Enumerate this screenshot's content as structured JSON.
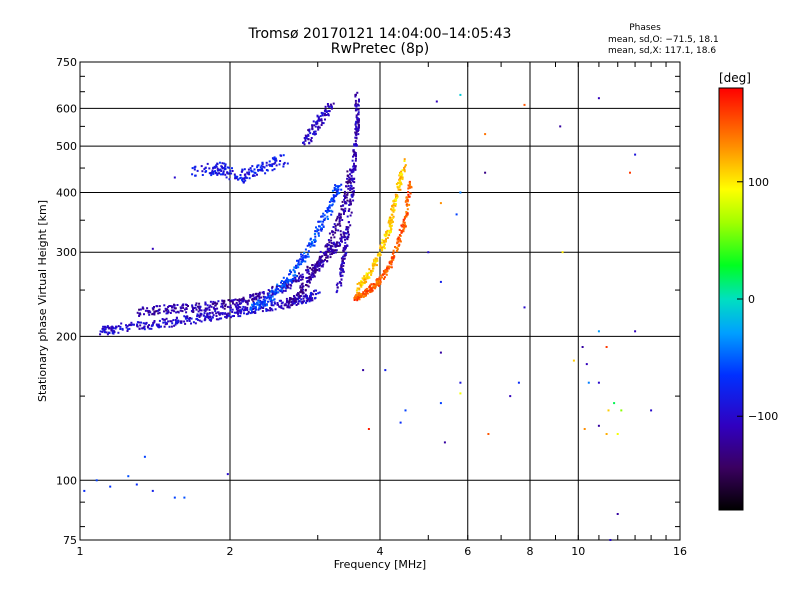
{
  "chart_data": {
    "type": "scatter",
    "title": "Tromsø 20170121 14:04:00–14:05:43",
    "subtitle": "RwPretec (8p)",
    "xlabel": "Frequency [MHz]",
    "ylabel": "Stationary phase Virtual Height [km]",
    "x_scale": "log",
    "y_scale": "log",
    "xlim": [
      1,
      16
    ],
    "ylim": [
      75,
      750
    ],
    "x_ticks": [
      1,
      2,
      4,
      6,
      8,
      10,
      16
    ],
    "x_tick_labels": [
      "1",
      "2",
      "4",
      "6",
      "8",
      "10",
      "16"
    ],
    "y_ticks": [
      75,
      100,
      200,
      300,
      400,
      500,
      600,
      750
    ],
    "y_tick_labels": [
      "75",
      "100",
      "200",
      "300",
      "400",
      "500",
      "600",
      "750"
    ],
    "grid": true,
    "phases_box": {
      "title": "Phases",
      "line_o": "mean, sd,O: −71.5, 18.1",
      "line_x": "mean, sd,X: 117.1, 18.6"
    },
    "colorbar": {
      "label": "[deg]",
      "range": [
        -180,
        180
      ],
      "ticks": [
        100,
        0,
        -100
      ],
      "tick_labels": [
        "100",
        "0",
        "−100"
      ]
    },
    "traces": [
      {
        "x": [
          1.1,
          1.2,
          1.4,
          1.6,
          1.8,
          2.0,
          2.2,
          2.5,
          2.8,
          3.0
        ],
        "y": [
          205,
          208,
          212,
          215,
          220,
          223,
          228,
          232,
          238,
          245
        ],
        "phase": -100,
        "spread": 0.03
      },
      {
        "x": [
          1.3,
          1.5,
          1.7,
          1.9,
          2.1,
          2.3,
          2.6,
          2.9,
          3.2,
          3.4
        ],
        "y": [
          225,
          228,
          230,
          232,
          236,
          242,
          255,
          275,
          300,
          330
        ],
        "phase": -115,
        "spread": 0.03
      },
      {
        "x": [
          2.2,
          2.4,
          2.6,
          2.8,
          3.0,
          3.2,
          3.3
        ],
        "y": [
          228,
          240,
          260,
          290,
          330,
          380,
          410
        ],
        "phase": -60,
        "spread": 0.03
      },
      {
        "x": [
          2.6,
          2.8,
          3.0,
          3.2,
          3.4,
          3.5
        ],
        "y": [
          232,
          250,
          280,
          320,
          380,
          450
        ],
        "phase": -120,
        "spread": 0.025
      },
      {
        "x": [
          3.3,
          3.4,
          3.5,
          3.55,
          3.6,
          3.6
        ],
        "y": [
          250,
          300,
          380,
          460,
          550,
          640
        ],
        "phase": -110,
        "spread": 0.018
      },
      {
        "x": [
          3.55,
          3.7,
          3.9,
          4.1,
          4.3,
          4.5,
          4.6
        ],
        "y": [
          240,
          245,
          255,
          270,
          300,
          350,
          420
        ],
        "phase": 150,
        "spread": 0.02
      },
      {
        "x": [
          3.6,
          3.8,
          4.0,
          4.2,
          4.3,
          4.5
        ],
        "y": [
          250,
          270,
          300,
          340,
          390,
          470
        ],
        "phase": 110,
        "spread": 0.02
      },
      {
        "x": [
          1.7,
          1.9,
          2.1,
          2.3,
          2.6
        ],
        "y": [
          440,
          450,
          430,
          450,
          470
        ],
        "phase": -85,
        "spread": 0.04
      },
      {
        "x": [
          2.8,
          3.0,
          3.2
        ],
        "y": [
          500,
          560,
          610
        ],
        "phase": -105,
        "spread": 0.03
      }
    ],
    "isolated_points": [
      {
        "x": 1.02,
        "y": 95,
        "phase": -70
      },
      {
        "x": 1.08,
        "y": 100,
        "phase": -60
      },
      {
        "x": 1.15,
        "y": 97,
        "phase": -65
      },
      {
        "x": 1.25,
        "y": 102,
        "phase": -55
      },
      {
        "x": 1.3,
        "y": 98,
        "phase": -70
      },
      {
        "x": 1.35,
        "y": 112,
        "phase": -60
      },
      {
        "x": 1.4,
        "y": 95,
        "phase": -80
      },
      {
        "x": 1.55,
        "y": 92,
        "phase": -60
      },
      {
        "x": 1.62,
        "y": 92,
        "phase": -55
      },
      {
        "x": 1.98,
        "y": 103,
        "phase": -100
      },
      {
        "x": 1.4,
        "y": 305,
        "phase": -110
      },
      {
        "x": 1.55,
        "y": 430,
        "phase": -100
      },
      {
        "x": 5.2,
        "y": 620,
        "phase": -110
      },
      {
        "x": 5.8,
        "y": 640,
        "phase": -10
      },
      {
        "x": 6.5,
        "y": 530,
        "phase": 140
      },
      {
        "x": 7.8,
        "y": 610,
        "phase": 150
      },
      {
        "x": 9.2,
        "y": 550,
        "phase": -120
      },
      {
        "x": 11,
        "y": 630,
        "phase": -110
      },
      {
        "x": 13,
        "y": 480,
        "phase": -90
      },
      {
        "x": 12.7,
        "y": 440,
        "phase": 160
      },
      {
        "x": 6.5,
        "y": 440,
        "phase": -130
      },
      {
        "x": 5.8,
        "y": 400,
        "phase": -40
      },
      {
        "x": 5.3,
        "y": 380,
        "phase": 130
      },
      {
        "x": 5.7,
        "y": 360,
        "phase": -60
      },
      {
        "x": 5.0,
        "y": 300,
        "phase": -100
      },
      {
        "x": 5.3,
        "y": 260,
        "phase": -80
      },
      {
        "x": 5.3,
        "y": 185,
        "phase": -120
      },
      {
        "x": 5.3,
        "y": 145,
        "phase": -60
      },
      {
        "x": 5.8,
        "y": 160,
        "phase": -90
      },
      {
        "x": 5.8,
        "y": 152,
        "phase": 90
      },
      {
        "x": 6.6,
        "y": 125,
        "phase": 150
      },
      {
        "x": 7.3,
        "y": 150,
        "phase": -110
      },
      {
        "x": 7.6,
        "y": 160,
        "phase": -70
      },
      {
        "x": 7.8,
        "y": 230,
        "phase": -100
      },
      {
        "x": 3.7,
        "y": 170,
        "phase": -120
      },
      {
        "x": 4.1,
        "y": 170,
        "phase": -80
      },
      {
        "x": 3.8,
        "y": 128,
        "phase": 170
      },
      {
        "x": 4.5,
        "y": 140,
        "phase": -60
      },
      {
        "x": 4.4,
        "y": 132,
        "phase": -70
      },
      {
        "x": 5.4,
        "y": 120,
        "phase": -120
      },
      {
        "x": 9.3,
        "y": 300,
        "phase": 100
      },
      {
        "x": 9.8,
        "y": 178,
        "phase": 110
      },
      {
        "x": 10.2,
        "y": 190,
        "phase": -120
      },
      {
        "x": 10.4,
        "y": 175,
        "phase": -110
      },
      {
        "x": 11.0,
        "y": 205,
        "phase": -30
      },
      {
        "x": 11.4,
        "y": 190,
        "phase": 160
      },
      {
        "x": 10.5,
        "y": 160,
        "phase": -40
      },
      {
        "x": 11.0,
        "y": 160,
        "phase": -100
      },
      {
        "x": 11.5,
        "y": 140,
        "phase": 110
      },
      {
        "x": 11.8,
        "y": 145,
        "phase": 20
      },
      {
        "x": 12.2,
        "y": 140,
        "phase": 60
      },
      {
        "x": 11.0,
        "y": 130,
        "phase": -120
      },
      {
        "x": 11.4,
        "y": 125,
        "phase": 120
      },
      {
        "x": 12.0,
        "y": 125,
        "phase": 90
      },
      {
        "x": 13.0,
        "y": 205,
        "phase": -110
      },
      {
        "x": 14.0,
        "y": 140,
        "phase": -100
      },
      {
        "x": 10.3,
        "y": 128,
        "phase": 130
      },
      {
        "x": 12.0,
        "y": 85,
        "phase": -120
      },
      {
        "x": 11.6,
        "y": 75,
        "phase": -100
      }
    ]
  }
}
